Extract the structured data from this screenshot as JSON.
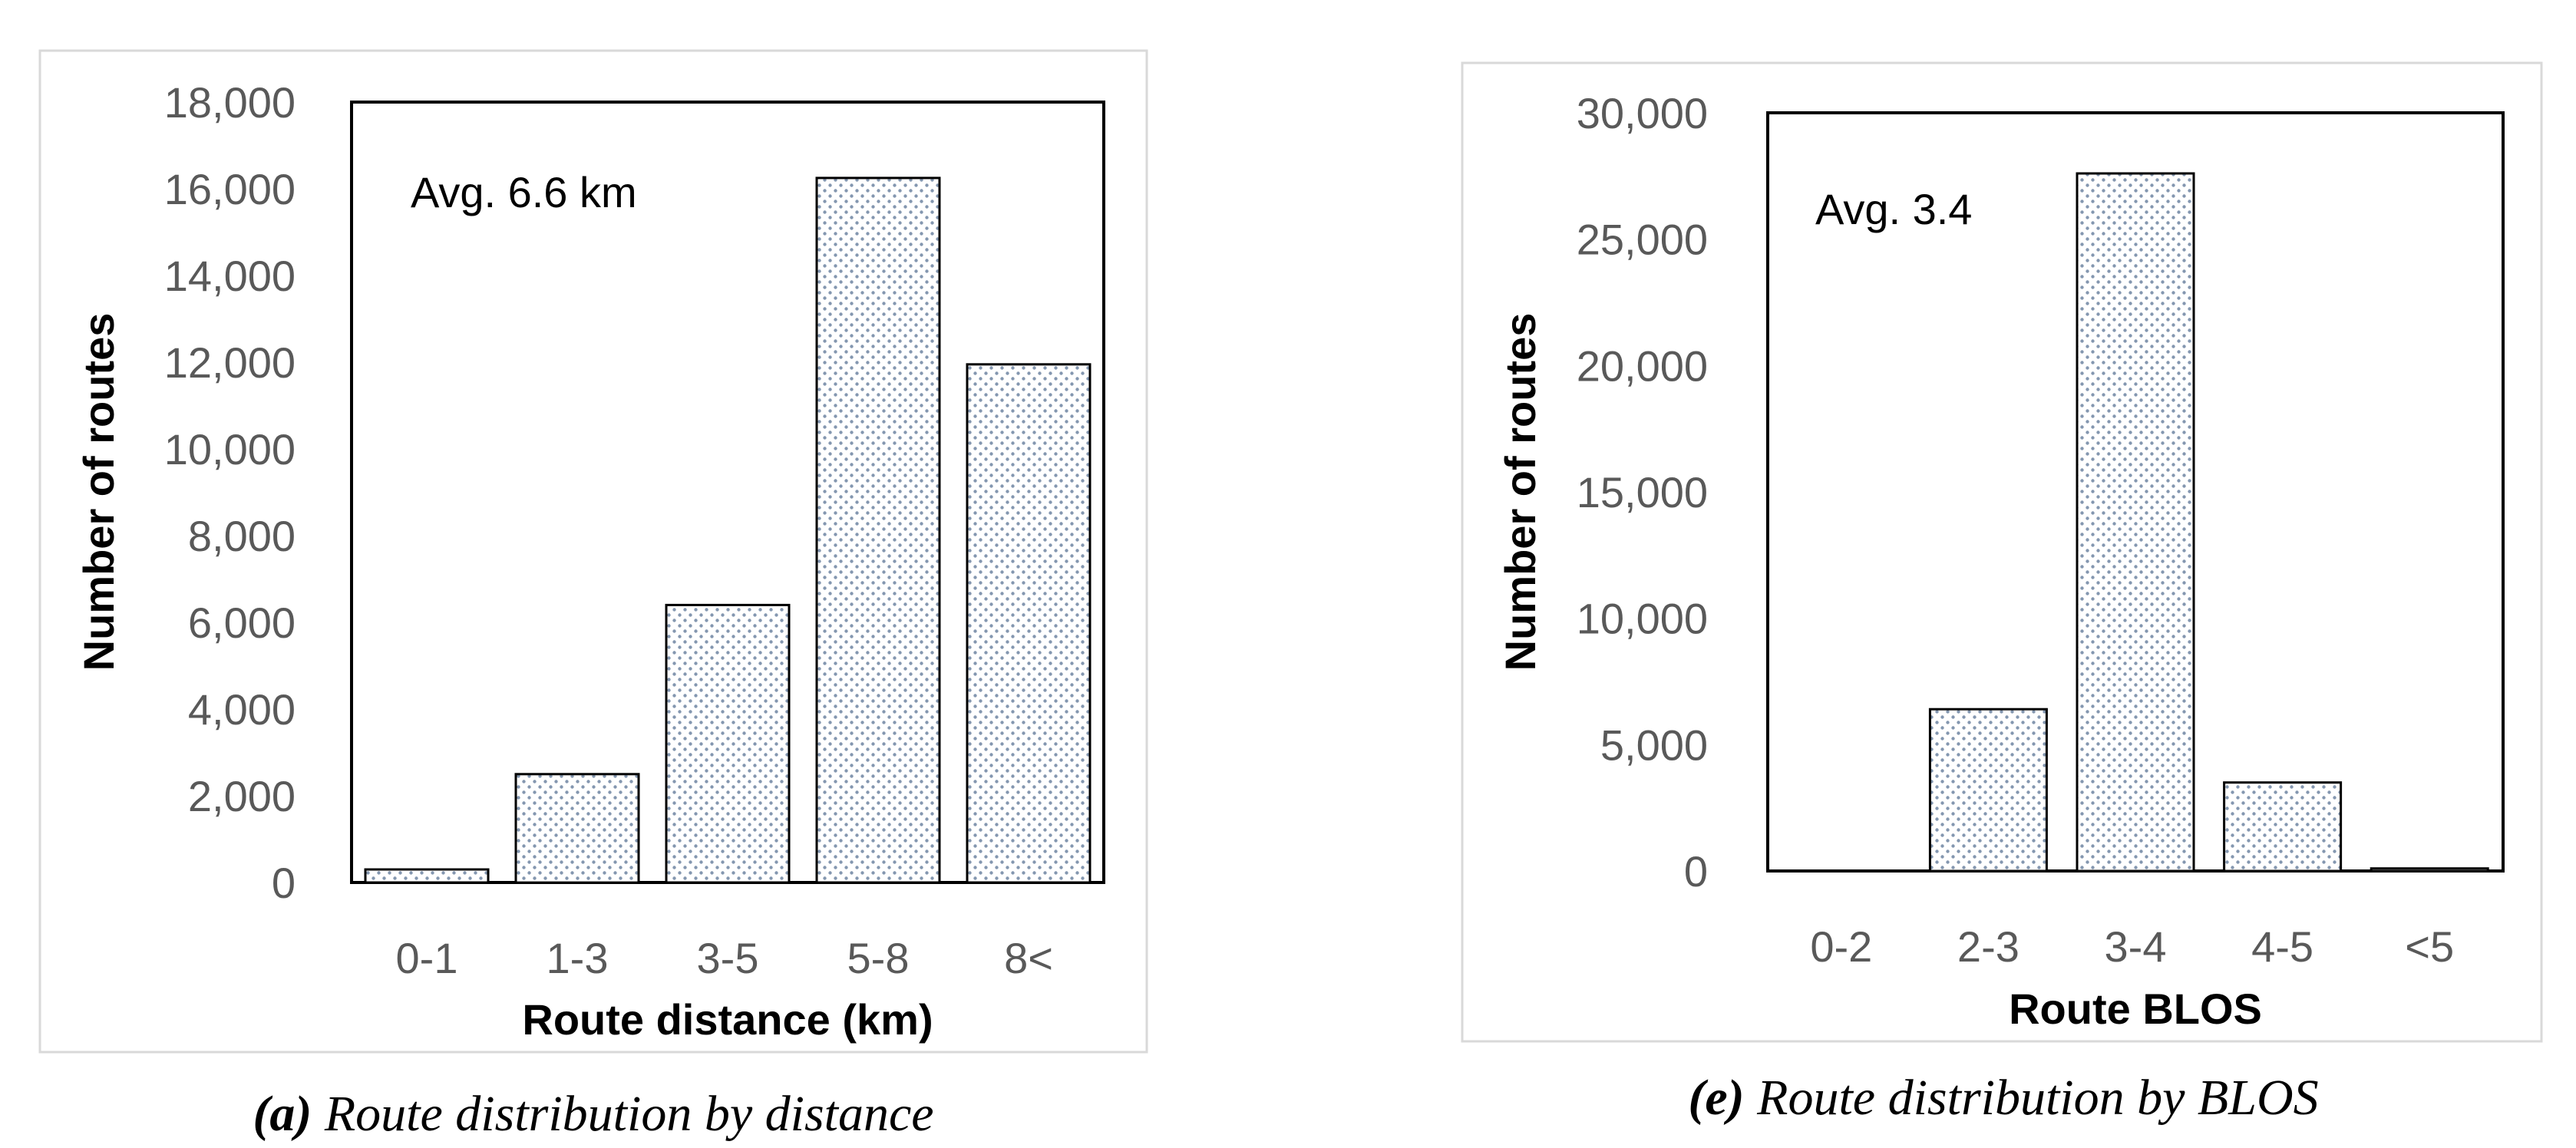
{
  "chart_data": [
    {
      "type": "bar",
      "categories": [
        "0-1",
        "1-3",
        "3-5",
        "5-8",
        "8<"
      ],
      "values": [
        300,
        2500,
        6400,
        16250,
        11950
      ],
      "ylim": [
        0,
        18000
      ],
      "yticks": [
        0,
        2000,
        4000,
        6000,
        8000,
        10000,
        12000,
        14000,
        16000,
        18000
      ],
      "xlabel": "Route distance (km)",
      "ylabel": "Number of routes",
      "annotation": "Avg. 6.6 km",
      "caption_letter": "(a)",
      "caption_text": " Route distribution by distance",
      "grid": false,
      "bar_fill": "dotted",
      "dot_color": "#8497b0"
    },
    {
      "type": "bar",
      "categories": [
        "0-2",
        "2-3",
        "3-4",
        "4-5",
        "<5"
      ],
      "values": [
        0,
        6400,
        27600,
        3500,
        100
      ],
      "ylim": [
        0,
        30000
      ],
      "yticks": [
        0,
        5000,
        10000,
        15000,
        20000,
        25000,
        30000
      ],
      "xlabel": "Route BLOS",
      "ylabel": "Number of routes",
      "annotation": "Avg. 3.4",
      "caption_letter": "(e)",
      "caption_text": " Route distribution by BLOS",
      "grid": false,
      "bar_fill": "dotted",
      "dot_color": "#8497b0"
    }
  ]
}
